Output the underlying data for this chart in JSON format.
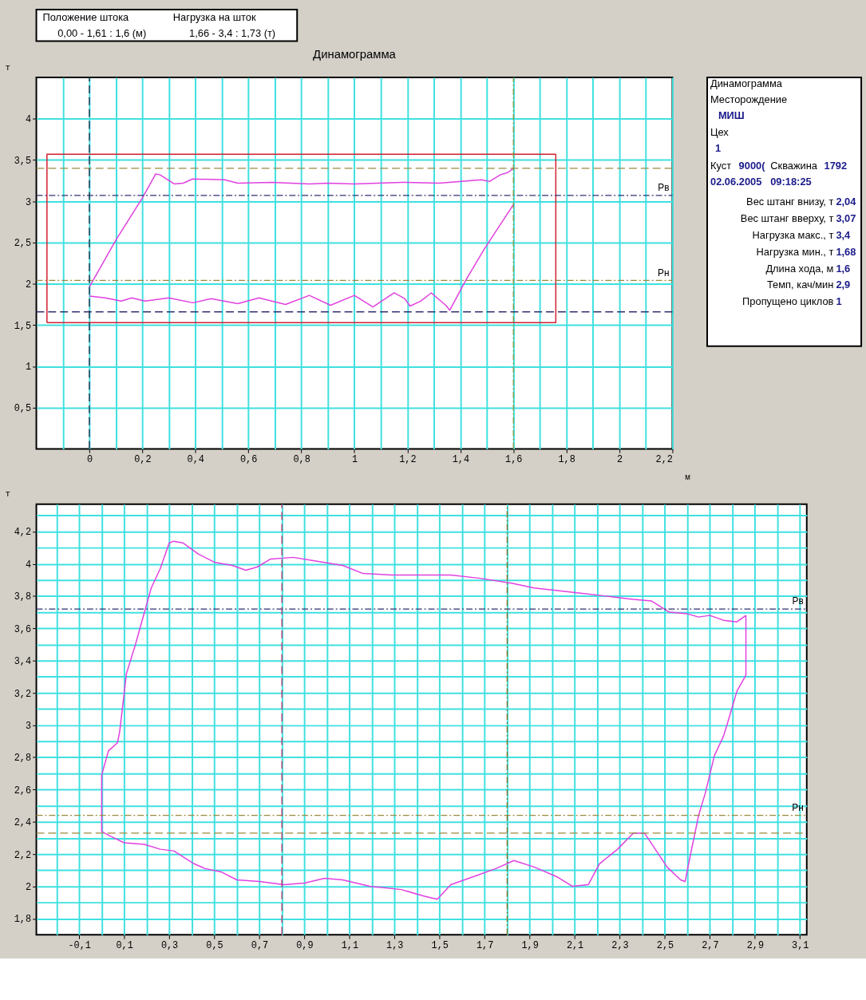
{
  "chart_data": [
    {
      "type": "other",
      "annotations": [
        "Положение штока",
        "0,00 - 1,61 : 1,6 (м)",
        "Нагрузка на шток",
        "1,66 - 3,4 : 1,73 (т)"
      ]
    },
    {
      "type": "line",
      "title": "Динамограмма",
      "xlabel": "м",
      "ylabel": "т",
      "xlim": [
        -0.2,
        2.2
      ],
      "ylim": [
        0,
        4.5
      ],
      "grid": true,
      "xticks": [
        {
          "value": -0.1,
          "label": null
        },
        0,
        {
          "value": 0.1,
          "label": null
        },
        {
          "value": 0.2,
          "label": "0,2"
        },
        {
          "value": 0.3,
          "label": null
        },
        {
          "value": 0.4,
          "label": "0,4"
        },
        {
          "value": 0.5,
          "label": null
        },
        {
          "value": 0.6,
          "label": "0,6"
        },
        {
          "value": 0.7,
          "label": null
        },
        {
          "value": 0.8,
          "label": "0,8"
        },
        {
          "value": 0.9,
          "label": null
        },
        1,
        {
          "value": 1.1,
          "label": null
        },
        {
          "value": 1.2,
          "label": "1,2"
        },
        {
          "value": 1.3,
          "label": null
        },
        {
          "value": 1.4,
          "label": "1,4"
        },
        {
          "value": 1.5,
          "label": null
        },
        {
          "value": 1.6,
          "label": "1,6"
        },
        {
          "value": 1.7,
          "label": null
        },
        {
          "value": 1.8,
          "label": "1,8"
        },
        {
          "value": 1.9,
          "label": null
        },
        2,
        {
          "value": 2.1,
          "label": null
        },
        {
          "value": 2.2,
          "label": "2,2"
        }
      ],
      "yticks": [
        {
          "value": 0.5,
          "label": "0,5"
        },
        1,
        {
          "value": 1.5,
          "label": "1,5"
        },
        2,
        {
          "value": 2.5,
          "label": "2,5"
        },
        3,
        {
          "value": 3.5,
          "label": "3,5"
        },
        4
      ],
      "ref_lines": [
        {
          "axis": "y",
          "value": 3.4,
          "color": "#9a8a40",
          "line_style": "dashed"
        },
        {
          "axis": "y",
          "value": 3.07,
          "label": "Рв",
          "color": "#303070",
          "line_style": "dotted"
        },
        {
          "axis": "y",
          "value": 2.04,
          "label": "Рн",
          "color": "#9a8a40",
          "line_style": "dotted"
        },
        {
          "axis": "y",
          "value": 1.66,
          "color": "#303070",
          "line_style": "dashed"
        },
        {
          "axis": "x",
          "value": 0,
          "color": "#202040",
          "line_style": "dashed"
        },
        {
          "axis": "x",
          "value": 1.6,
          "color": "#8a9a40",
          "line_style": "dotted"
        }
      ],
      "series": [
        {
          "type": "line",
          "color": "#d02030",
          "x": [
            -0.16,
            1.76,
            1.76
          ],
          "values": [
            1.53,
            1.53,
            3.57
          ]
        },
        {
          "type": "line",
          "color": "#d02030",
          "x": [
            -0.16,
            -0.16,
            1.76
          ],
          "values": [
            1.53,
            3.57,
            3.57
          ]
        },
        {
          "type": "line",
          "color": "#e040e0",
          "x": [
            0,
            0.1,
            0.2,
            0.25,
            0.267,
            0.32,
            0.354,
            0.39,
            0.51,
            0.56,
            0.69,
            0.83,
            0.9,
            1.0,
            1.18,
            1.32,
            1.48,
            1.51,
            1.55,
            1.58,
            1.6
          ],
          "values": [
            1.96,
            2.53,
            3.04,
            3.33,
            3.32,
            3.21,
            3.22,
            3.27,
            3.26,
            3.22,
            3.23,
            3.21,
            3.22,
            3.21,
            3.23,
            3.22,
            3.26,
            3.24,
            3.32,
            3.35,
            3.4
          ]
        },
        {
          "type": "line",
          "color": "#e040e0",
          "x": [
            0,
            0.06,
            0.12,
            0.16,
            0.21,
            0.3,
            0.39,
            0.46,
            0.56,
            0.64,
            0.74,
            0.83,
            0.91,
            1.0,
            1.07,
            1.15,
            1.19,
            1.21,
            1.25,
            1.29,
            1.345,
            1.36,
            1.42,
            1.49,
            1.6
          ],
          "values": [
            1.85,
            1.83,
            1.79,
            1.83,
            1.79,
            1.83,
            1.77,
            1.82,
            1.76,
            1.83,
            1.75,
            1.86,
            1.74,
            1.86,
            1.72,
            1.89,
            1.82,
            1.73,
            1.79,
            1.89,
            1.74,
            1.68,
            2.04,
            2.42,
            2.96
          ]
        }
      ]
    },
    {
      "type": "other",
      "title": "Динамограмма",
      "annotations": [
        "Месторождение",
        "МИШ",
        "Цех",
        "1",
        "Куст",
        "9000(",
        "Скважина",
        "1792",
        "02.06.2005",
        "09:18:25",
        "Вес штанг внизу, т",
        "2,04",
        "Вес штанг вверху, т",
        "3,07",
        "Нагрузка макс., т",
        "3,4",
        "Нагрузка мин., т",
        "1,68",
        "Длина хода, м",
        "1,6",
        "Темп, кач/мин",
        "2,9",
        "Пропущено циклов",
        "1"
      ]
    },
    {
      "type": "line",
      "ylabel": "т",
      "xlim": [
        -0.29,
        3.13
      ],
      "ylim": [
        1.7,
        4.37
      ],
      "grid": true,
      "xticks": [
        {
          "value": -0.2,
          "label": null
        },
        {
          "value": -0.1,
          "label": "-0,1"
        },
        {
          "value": 0,
          "label": null
        },
        {
          "value": 0.1,
          "label": "0,1"
        },
        {
          "value": 0.2,
          "label": null
        },
        {
          "value": 0.3,
          "label": "0,3"
        },
        {
          "value": 0.4,
          "label": null
        },
        {
          "value": 0.5,
          "label": "0,5"
        },
        {
          "value": 0.6,
          "label": null
        },
        {
          "value": 0.7,
          "label": "0,7"
        },
        {
          "value": 0.8,
          "label": null
        },
        {
          "value": 0.9,
          "label": "0,9"
        },
        {
          "value": 1,
          "label": null
        },
        {
          "value": 1.1,
          "label": "1,1"
        },
        {
          "value": 1.2,
          "label": null
        },
        {
          "value": 1.3,
          "label": "1,3"
        },
        {
          "value": 1.4,
          "label": null
        },
        {
          "value": 1.5,
          "label": "1,5"
        },
        {
          "value": 1.6,
          "label": null
        },
        {
          "value": 1.7,
          "label": "1,7"
        },
        {
          "value": 1.8,
          "label": null
        },
        {
          "value": 1.9,
          "label": "1,9"
        },
        {
          "value": 2,
          "label": null
        },
        {
          "value": 2.1,
          "label": "2,1"
        },
        {
          "value": 2.2,
          "label": null
        },
        {
          "value": 2.3,
          "label": "2,3"
        },
        {
          "value": 2.4,
          "label": null
        },
        {
          "value": 2.5,
          "label": "2,5"
        },
        {
          "value": 2.6,
          "label": null
        },
        {
          "value": 2.7,
          "label": "2,7"
        },
        {
          "value": 2.8,
          "label": null
        },
        {
          "value": 2.9,
          "label": "2,9"
        },
        {
          "value": 3,
          "label": null
        },
        {
          "value": 3.1,
          "label": "3,1"
        }
      ],
      "yticks": [
        {
          "value": 1.8,
          "label": "1,8"
        },
        {
          "value": 1.9,
          "label": null
        },
        2,
        {
          "value": 2.1,
          "label": null
        },
        {
          "value": 2.2,
          "label": "2,2"
        },
        {
          "value": 2.3,
          "label": null
        },
        {
          "value": 2.4,
          "label": "2,4"
        },
        {
          "value": 2.5,
          "label": null
        },
        {
          "value": 2.6,
          "label": "2,6"
        },
        {
          "value": 2.7,
          "label": null
        },
        {
          "value": 2.8,
          "label": "2,8"
        },
        {
          "value": 2.9,
          "label": null
        },
        3,
        {
          "value": 3.1,
          "label": null
        },
        {
          "value": 3.2,
          "label": "3,2"
        },
        {
          "value": 3.3,
          "label": null
        },
        {
          "value": 3.4,
          "label": "3,4"
        },
        {
          "value": 3.5,
          "label": null
        },
        {
          "value": 3.6,
          "label": "3,6"
        },
        {
          "value": 3.7,
          "label": null
        },
        {
          "value": 3.8,
          "label": "3,8"
        },
        {
          "value": 3.9,
          "label": null
        },
        4,
        {
          "value": 4.1,
          "label": null
        },
        {
          "value": 4.2,
          "label": "4,2"
        },
        {
          "value": 4.3,
          "label": null
        }
      ],
      "ref_lines": [
        {
          "axis": "y",
          "value": 3.72,
          "label": "Рв",
          "color": "#303070",
          "line_style": "dotted"
        },
        {
          "axis": "y",
          "value": 2.44,
          "label": "Рн",
          "color": "#9a8a40",
          "line_style": "dotted"
        },
        {
          "axis": "y",
          "value": 2.33,
          "color": "#9a8a40",
          "line_style": "dashed"
        },
        {
          "axis": "x",
          "value": 0.8,
          "color": "#c0306a",
          "line_style": "dashed"
        },
        {
          "axis": "x",
          "value": 1.8,
          "color": "#8a7020",
          "line_style": "dotted"
        }
      ],
      "series": [
        {
          "type": "line",
          "color": "#e040e0",
          "x": [
            0.0,
            0.0,
            0.03,
            0.07,
            0.08,
            0.11,
            0.15,
            0.19,
            0.22,
            0.26,
            0.3,
            0.32,
            0.36,
            0.43,
            0.5,
            0.58,
            0.64,
            0.69,
            0.75,
            0.85,
            0.94,
            1.07,
            1.16,
            1.29,
            1.41,
            1.55,
            1.68,
            1.82,
            1.92,
            2.11,
            2.24,
            2.36,
            2.44,
            2.52,
            2.6,
            2.65,
            2.7,
            2.76,
            2.82,
            2.86
          ],
          "values": [
            2.34,
            2.69,
            2.84,
            2.89,
            2.96,
            3.32,
            3.5,
            3.7,
            3.85,
            3.97,
            4.13,
            4.14,
            4.13,
            4.06,
            4.01,
            3.99,
            3.96,
            3.98,
            4.03,
            4.04,
            4.02,
            3.99,
            3.94,
            3.93,
            3.93,
            3.93,
            3.91,
            3.88,
            3.85,
            3.82,
            3.8,
            3.78,
            3.77,
            3.7,
            3.69,
            3.67,
            3.68,
            3.65,
            3.64,
            3.68
          ]
        },
        {
          "type": "line",
          "color": "#e040e0",
          "x": [
            0.0,
            0.04,
            0.1,
            0.19,
            0.26,
            0.32,
            0.41,
            0.46,
            0.53,
            0.6,
            0.7,
            0.81,
            0.9,
            0.99,
            1.07,
            1.19,
            1.33,
            1.43,
            1.49,
            1.55,
            1.63,
            1.75,
            1.83,
            1.92,
            2.02,
            2.09,
            2.16,
            2.21,
            2.29,
            2.36,
            2.41,
            2.51,
            2.57,
            2.59,
            2.61,
            2.65,
            2.68,
            2.72,
            2.76,
            2.78,
            2.82,
            2.86,
            2.86,
            2.86
          ],
          "values": [
            2.34,
            2.31,
            2.27,
            2.26,
            2.23,
            2.22,
            2.14,
            2.11,
            2.09,
            2.04,
            2.03,
            2.01,
            2.02,
            2.05,
            2.04,
            2.0,
            1.98,
            1.94,
            1.92,
            2.01,
            2.05,
            2.11,
            2.16,
            2.12,
            2.06,
            2.0,
            2.01,
            2.14,
            2.23,
            2.33,
            2.33,
            2.12,
            2.04,
            2.03,
            2.17,
            2.44,
            2.58,
            2.81,
            2.93,
            3.02,
            3.21,
            3.31,
            3.59,
            3.68
          ]
        }
      ]
    }
  ]
}
